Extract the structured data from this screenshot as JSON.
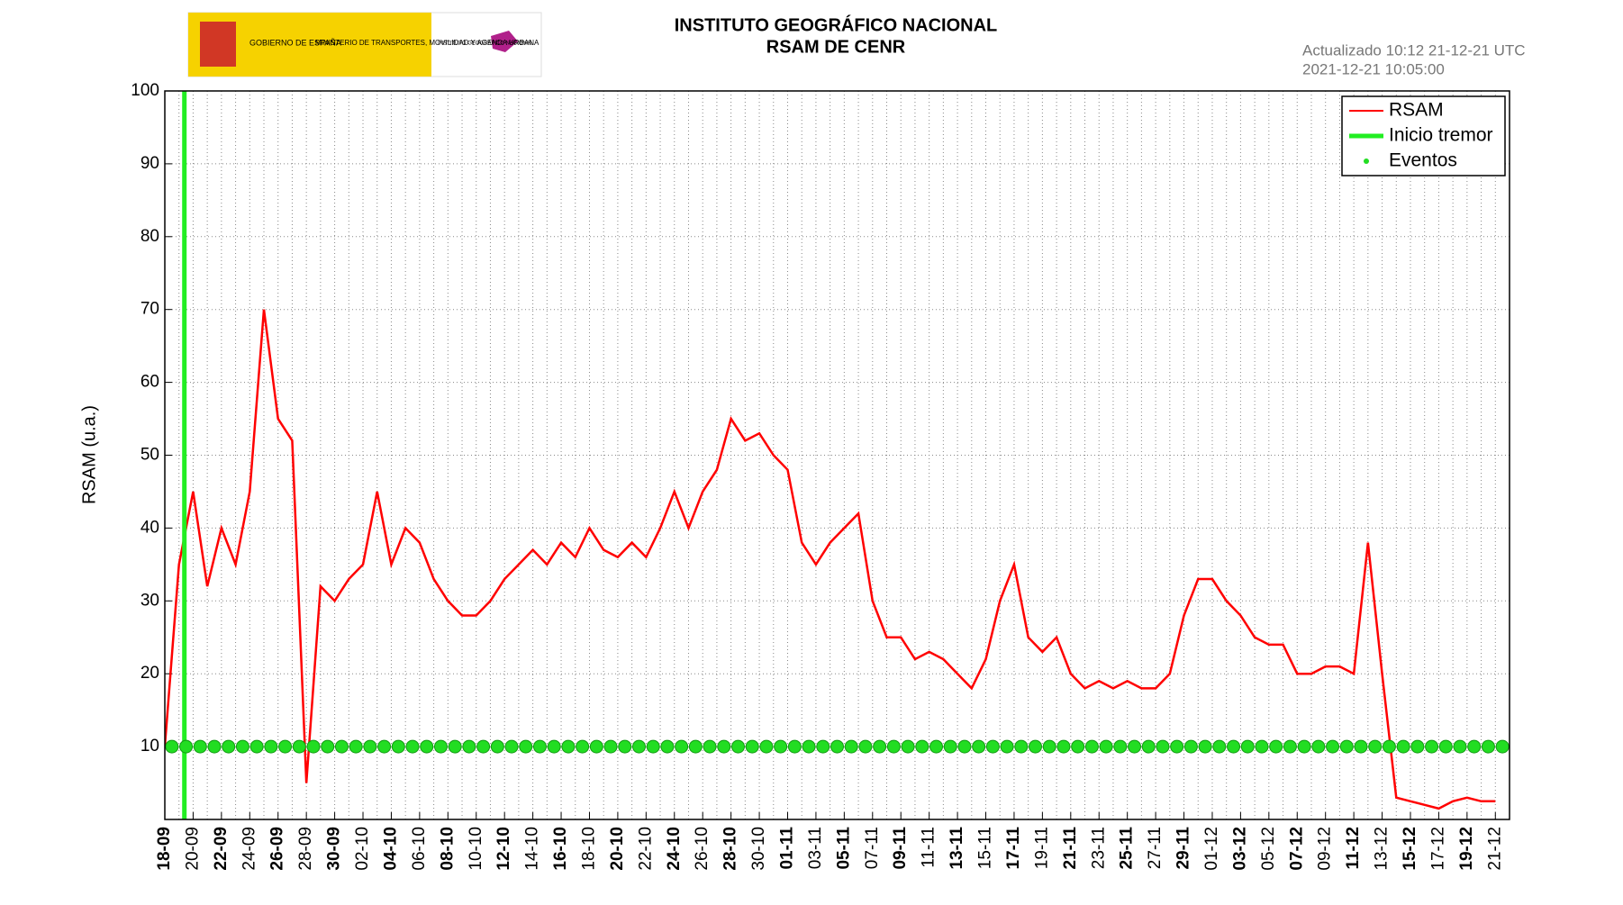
{
  "header": {
    "logo_gov": "GOBIERNO DE ESPAÑA",
    "logo_ministry": "MINISTERIO DE TRANSPORTES, MOVILIDAD Y AGENDA URBANA",
    "logo_ign": "INSTITUTO GEOGRÁFICO NACIONAL"
  },
  "chart_data": {
    "type": "line",
    "title": "INSTITUTO GEOGRÁFICO NACIONAL",
    "subtitle": "RSAM DE CENR",
    "updated": "Actualizado 10:12 21-12-21 UTC",
    "timestamp": "2021-12-21 10:05:00",
    "ylabel": "RSAM (u.a.)",
    "x": [
      "18-09",
      "19-09",
      "20-09",
      "21-09",
      "22-09",
      "23-09",
      "24-09",
      "25-09",
      "26-09",
      "27-09",
      "28-09",
      "29-09",
      "30-09",
      "01-10",
      "02-10",
      "03-10",
      "04-10",
      "05-10",
      "06-10",
      "07-10",
      "08-10",
      "09-10",
      "10-10",
      "11-10",
      "12-10",
      "13-10",
      "14-10",
      "15-10",
      "16-10",
      "17-10",
      "18-10",
      "19-10",
      "20-10",
      "21-10",
      "22-10",
      "23-10",
      "24-10",
      "25-10",
      "26-10",
      "27-10",
      "28-10",
      "29-10",
      "30-10",
      "31-10",
      "01-11",
      "02-11",
      "03-11",
      "04-11",
      "05-11",
      "06-11",
      "07-11",
      "08-11",
      "09-11",
      "10-11",
      "11-11",
      "12-11",
      "13-11",
      "14-11",
      "15-11",
      "16-11",
      "17-11",
      "18-11",
      "19-11",
      "20-11",
      "21-11",
      "22-11",
      "23-11",
      "24-11",
      "25-11",
      "26-11",
      "27-11",
      "28-11",
      "29-11",
      "30-11",
      "01-12",
      "02-12",
      "03-12",
      "04-12",
      "05-12",
      "06-12",
      "07-12",
      "08-12",
      "09-12",
      "10-12",
      "11-12",
      "12-12",
      "13-12",
      "14-12",
      "15-12",
      "16-12",
      "17-12",
      "18-12",
      "19-12",
      "20-12",
      "21-12"
    ],
    "xticks": [
      "18-09",
      "20-09",
      "22-09",
      "24-09",
      "26-09",
      "28-09",
      "30-09",
      "02-10",
      "04-10",
      "06-10",
      "08-10",
      "10-10",
      "12-10",
      "14-10",
      "16-10",
      "18-10",
      "20-10",
      "22-10",
      "24-10",
      "26-10",
      "28-10",
      "30-10",
      "01-11",
      "03-11",
      "05-11",
      "07-11",
      "09-11",
      "11-11",
      "13-11",
      "15-11",
      "17-11",
      "19-11",
      "21-11",
      "23-11",
      "25-11",
      "27-11",
      "29-11",
      "01-12",
      "03-12",
      "05-12",
      "07-12",
      "09-12",
      "11-12",
      "13-12",
      "15-12",
      "17-12",
      "19-12",
      "21-12"
    ],
    "series": [
      {
        "name": "RSAM",
        "color": "#ff0000",
        "mode": "line",
        "values": [
          10,
          35,
          45,
          32,
          40,
          35,
          45,
          70,
          55,
          52,
          5,
          32,
          30,
          33,
          35,
          45,
          35,
          40,
          38,
          33,
          30,
          28,
          28,
          30,
          33,
          35,
          37,
          35,
          38,
          36,
          40,
          37,
          36,
          38,
          36,
          40,
          45,
          40,
          45,
          48,
          55,
          52,
          53,
          50,
          48,
          38,
          35,
          38,
          40,
          42,
          30,
          25,
          25,
          22,
          23,
          22,
          20,
          18,
          22,
          30,
          35,
          25,
          23,
          25,
          20,
          18,
          19,
          18,
          19,
          18,
          18,
          20,
          28,
          33,
          33,
          30,
          28,
          25,
          24,
          24,
          20,
          20,
          21,
          21,
          20,
          38,
          20,
          3,
          2.5,
          2,
          1.5,
          2.5,
          3,
          2.5,
          2.5
        ]
      },
      {
        "name": "Inicio tremor",
        "color": "#22ee22",
        "mode": "vline",
        "x": "19-09"
      },
      {
        "name": "Eventos",
        "color": "#22dd22",
        "mode": "markers",
        "values": [
          10,
          10,
          10,
          10,
          10,
          10,
          10,
          10,
          10,
          10,
          10,
          10,
          10,
          10,
          10,
          10,
          10,
          10,
          10,
          10,
          10,
          10,
          10,
          10,
          10,
          10,
          10,
          10,
          10,
          10,
          10,
          10,
          10,
          10,
          10,
          10,
          10,
          10,
          10,
          10,
          10,
          10,
          10,
          10,
          10,
          10,
          10,
          10,
          10,
          10,
          10,
          10,
          10,
          10,
          10,
          10,
          10,
          10,
          10,
          10,
          10,
          10,
          10,
          10,
          10,
          10,
          10,
          10,
          10,
          10,
          10,
          10,
          10,
          10,
          10,
          10,
          10,
          10,
          10,
          10,
          10,
          10,
          10,
          10,
          10,
          10,
          10,
          10,
          10,
          10,
          10,
          10,
          10,
          10,
          10
        ]
      }
    ],
    "ylim": [
      0,
      100
    ],
    "yticks": [
      10,
      20,
      30,
      40,
      50,
      60,
      70,
      80,
      90,
      100
    ],
    "grid": true,
    "legend": "top-right"
  }
}
